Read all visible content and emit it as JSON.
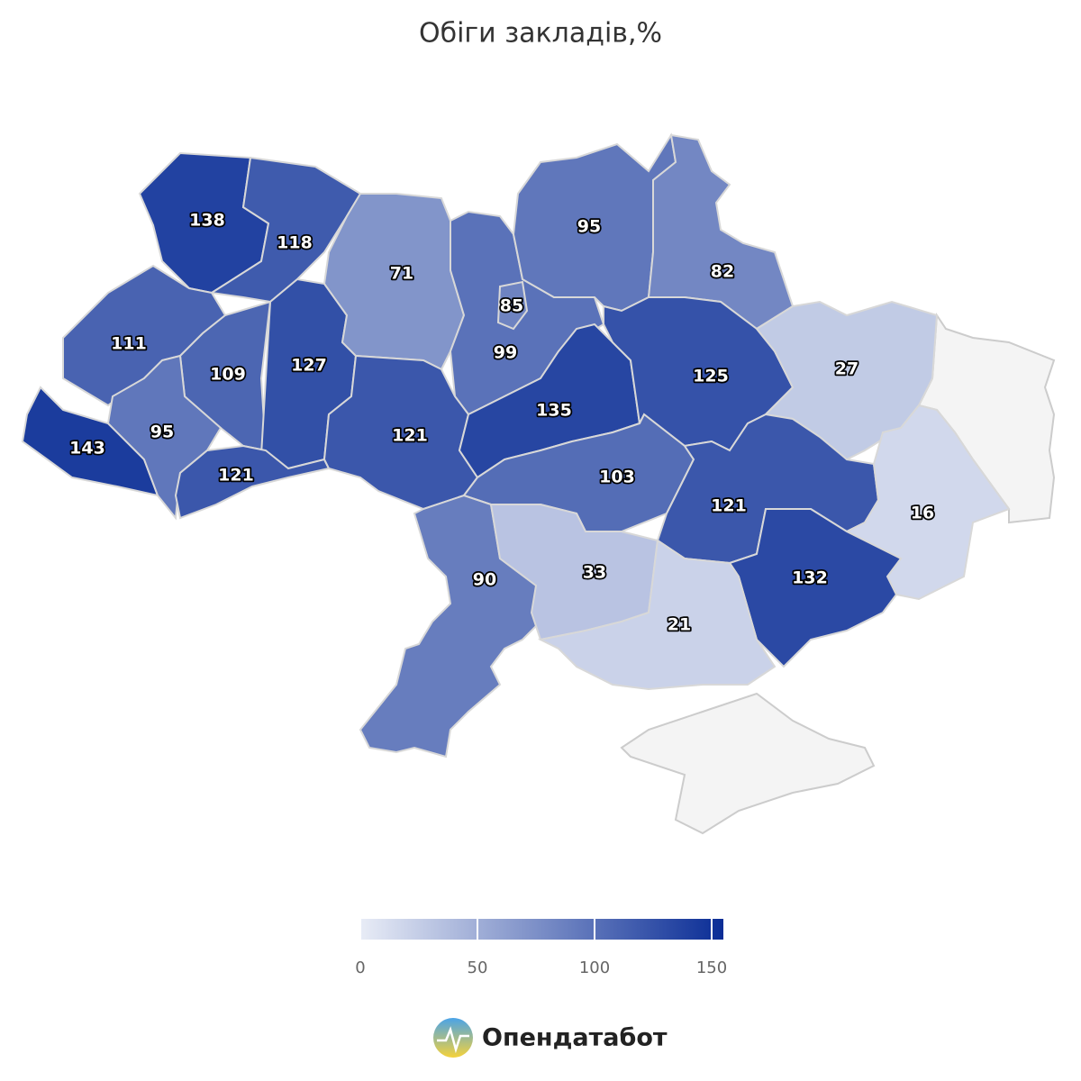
{
  "chart_data": {
    "type": "choropleth",
    "title": "Обіги закладів,%",
    "values": [
      138,
      118,
      111,
      109,
      127,
      143,
      95,
      121,
      71,
      99,
      85,
      121,
      95,
      82,
      135,
      125,
      27,
      103,
      121,
      16,
      132,
      90,
      33,
      21
    ],
    "colorscale": {
      "lim": [
        0,
        155
      ],
      "ticks": [
        0,
        50,
        100,
        150
      ],
      "colors": [
        "#e8ecf6",
        "#0a2d96"
      ]
    },
    "logo": "Опендатабот"
  }
}
